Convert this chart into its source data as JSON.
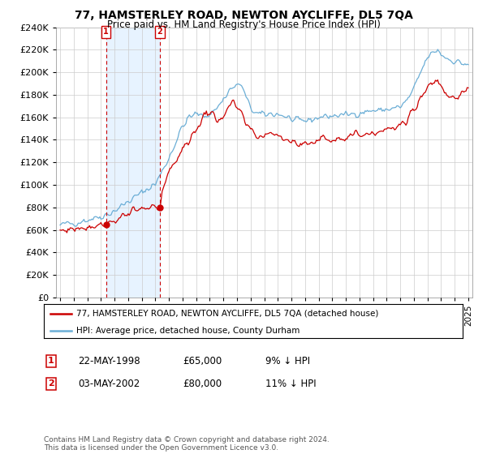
{
  "title": "77, HAMSTERLEY ROAD, NEWTON AYCLIFFE, DL5 7QA",
  "subtitle": "Price paid vs. HM Land Registry's House Price Index (HPI)",
  "legend_line1": "77, HAMSTERLEY ROAD, NEWTON AYCLIFFE, DL5 7QA (detached house)",
  "legend_line2": "HPI: Average price, detached house, County Durham",
  "sale1_label": "1",
  "sale1_date": "22-MAY-1998",
  "sale1_price": "£65,000",
  "sale1_hpi": "9% ↓ HPI",
  "sale2_label": "2",
  "sale2_date": "03-MAY-2002",
  "sale2_price": "£80,000",
  "sale2_hpi": "11% ↓ HPI",
  "footnote": "Contains HM Land Registry data © Crown copyright and database right 2024.\nThis data is licensed under the Open Government Licence v3.0.",
  "ylim": [
    0,
    240000
  ],
  "yticks": [
    0,
    20000,
    40000,
    60000,
    80000,
    100000,
    120000,
    140000,
    160000,
    180000,
    200000,
    220000,
    240000
  ],
  "hpi_color": "#6baed6",
  "price_color": "#cc0000",
  "background_color": "#ffffff",
  "grid_color": "#cccccc",
  "sale1_year": 1998.38,
  "sale1_value": 65000,
  "sale2_year": 2002.33,
  "sale2_value": 80000
}
